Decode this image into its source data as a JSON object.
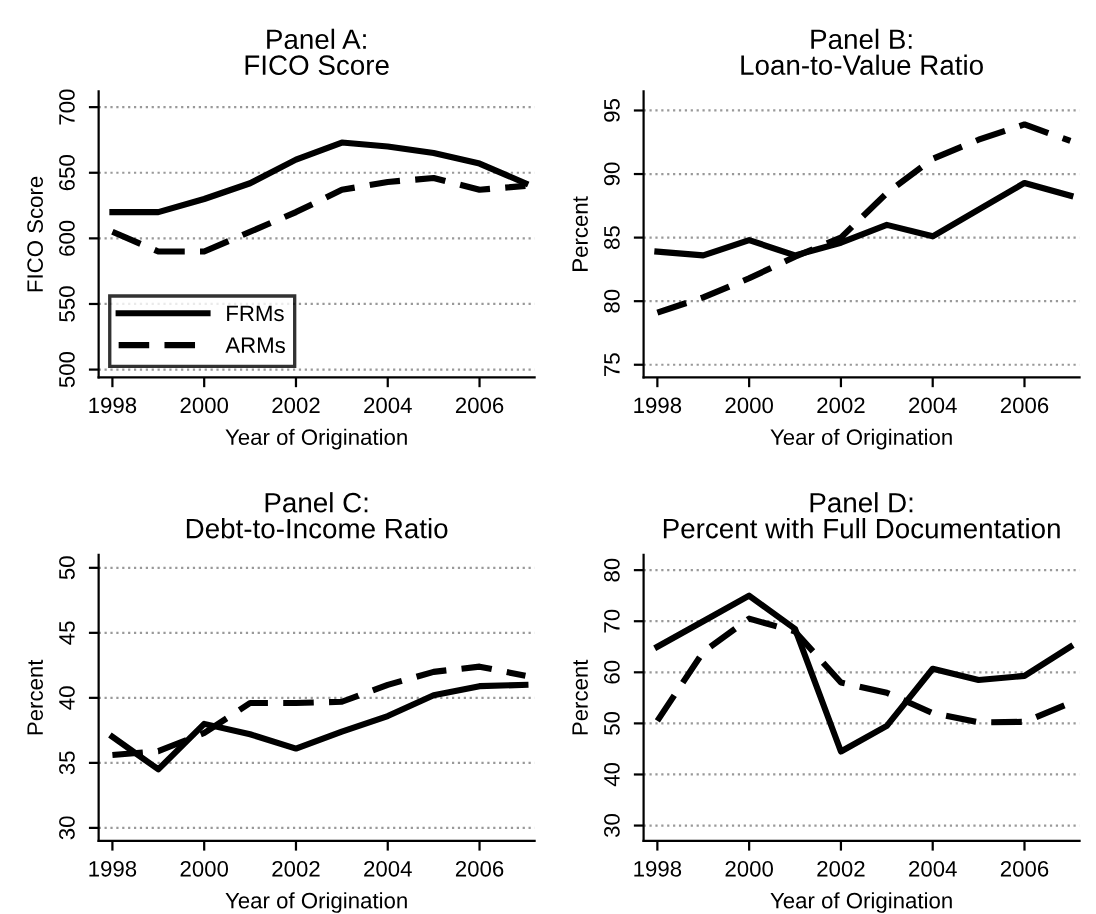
{
  "chart_data": [
    {
      "type": "line",
      "title": "Panel A:\nFICO Score",
      "xlabel": "Year of Origination",
      "ylabel": "FICO Score",
      "x": [
        1998,
        1999,
        2000,
        2001,
        2002,
        2003,
        2004,
        2005,
        2006,
        2007
      ],
      "series": [
        {
          "name": "FRMs",
          "color": "#000000",
          "line_style": "solid",
          "values": [
            620,
            620,
            630,
            642,
            660,
            673,
            670,
            665,
            657,
            642
          ]
        },
        {
          "name": "ARMs",
          "color": "#000000",
          "line_style": "dashed",
          "values": [
            605,
            590,
            590,
            605,
            620,
            637,
            643,
            646,
            637,
            640
          ]
        }
      ],
      "xlim": [
        1997.7,
        2007.2
      ],
      "xticks": [
        1998,
        2000,
        2002,
        2004,
        2006
      ],
      "ylim": [
        494,
        712
      ],
      "yticks": [
        500,
        550,
        600,
        650,
        700
      ],
      "grid": "y",
      "legend": "bottom left",
      "marker": "none"
    },
    {
      "type": "line",
      "title": "Panel B:\nLoan-to-Value Ratio",
      "xlabel": "Year of Origination",
      "ylabel": "Percent",
      "x": [
        1998,
        1999,
        2000,
        2001,
        2002,
        2003,
        2004,
        2005,
        2006,
        2007
      ],
      "series": [
        {
          "color": "#000000",
          "line_style": "solid",
          "values": [
            83.9,
            83.6,
            84.8,
            83.6,
            84.6,
            86,
            85.1,
            87.2,
            89.3,
            88.3
          ]
        },
        {
          "color": "#000000",
          "line_style": "dashed",
          "values": [
            79.1,
            80.3,
            81.8,
            83.5,
            85,
            88.5,
            91.2,
            92.7,
            93.9,
            92.6
          ]
        }
      ],
      "xlim": [
        1997.7,
        2007.2
      ],
      "xticks": [
        1998,
        2000,
        2002,
        2004,
        2006
      ],
      "ylim": [
        74,
        96.5
      ],
      "yticks": [
        75,
        80,
        85,
        90,
        95
      ],
      "grid": "y",
      "marker": "none"
    },
    {
      "type": "line",
      "title": "Panel C:\nDebt-to-Income Ratio",
      "xlabel": "Year of Origination",
      "ylabel": "Percent",
      "x": [
        1998,
        1999,
        2000,
        2001,
        2002,
        2003,
        2004,
        2005,
        2006,
        2007
      ],
      "series": [
        {
          "color": "#000000",
          "line_style": "solid",
          "values": [
            37,
            34.5,
            38,
            37.2,
            36.1,
            37.4,
            38.6,
            40.2,
            40.9,
            41
          ]
        },
        {
          "color": "#000000",
          "line_style": "dashed",
          "values": [
            35.6,
            35.9,
            37.3,
            39.6,
            39.6,
            39.7,
            41,
            42,
            42.4,
            41.7
          ]
        }
      ],
      "xlim": [
        1997.7,
        2007.2
      ],
      "xticks": [
        1998,
        2000,
        2002,
        2004,
        2006
      ],
      "ylim": [
        29,
        51
      ],
      "yticks": [
        30,
        35,
        40,
        45,
        50
      ],
      "grid": "y",
      "marker": "none"
    },
    {
      "type": "line",
      "title": "Panel D:\nPercent with Full Documentation",
      "xlabel": "Year of Origination",
      "ylabel": "Percent",
      "x": [
        1998,
        1999,
        2000,
        2001,
        2002,
        2003,
        2004,
        2005,
        2006,
        2007
      ],
      "series": [
        {
          "color": "#000000",
          "line_style": "solid",
          "values": [
            65,
            70,
            75,
            68.5,
            44.5,
            49.5,
            60.7,
            58.5,
            59.3,
            65
          ]
        },
        {
          "color": "#000000",
          "line_style": "dashed",
          "values": [
            50.5,
            64,
            70.5,
            68,
            58,
            56,
            52,
            50.2,
            50.3,
            54
          ]
        }
      ],
      "xlim": [
        1997.7,
        2007.2
      ],
      "xticks": [
        1998,
        2000,
        2002,
        2004,
        2006
      ],
      "ylim": [
        27,
        83
      ],
      "yticks": [
        30,
        40,
        50,
        60,
        70,
        80
      ],
      "grid": "y",
      "marker": "none"
    }
  ]
}
